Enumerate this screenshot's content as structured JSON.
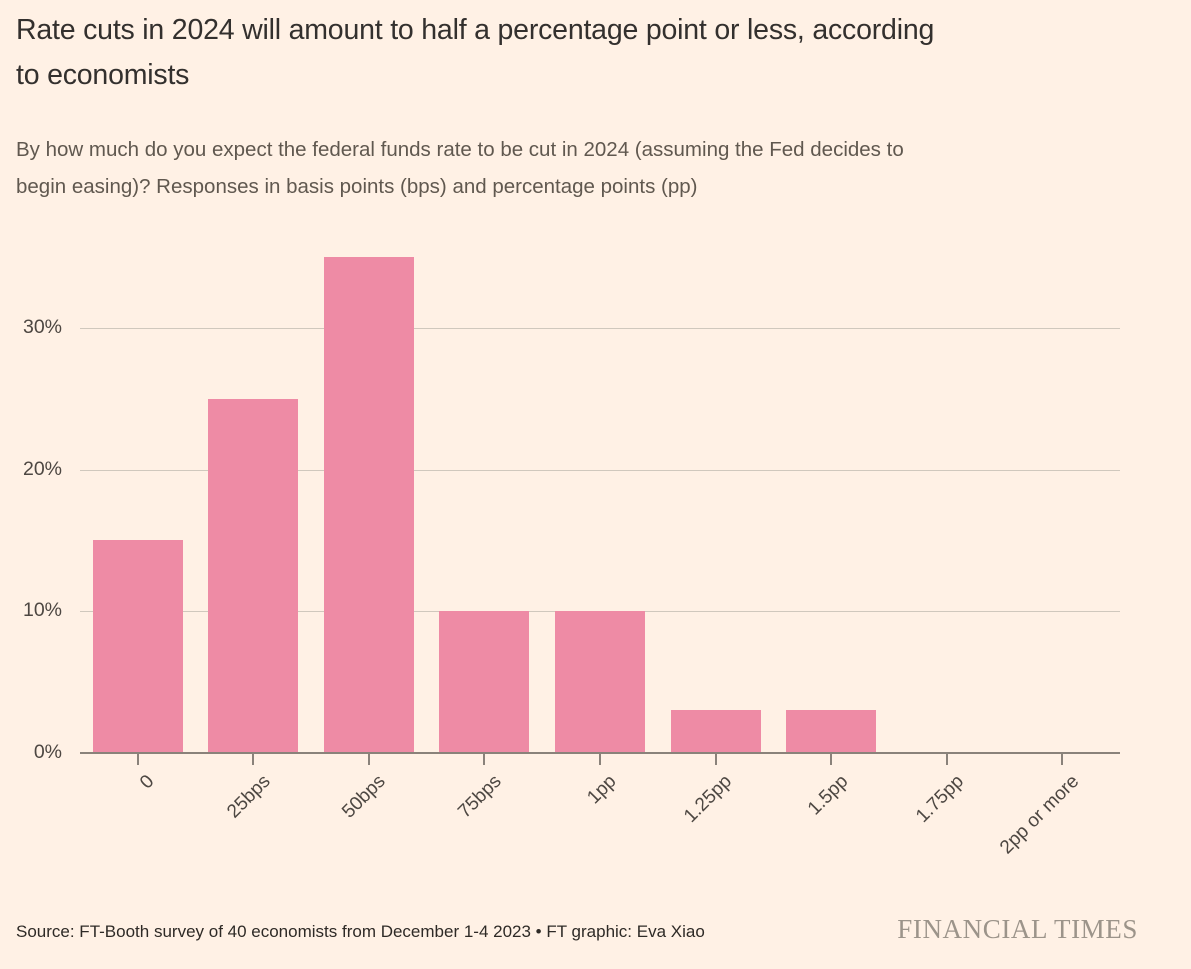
{
  "header": {
    "title": "Rate cuts in 2024 will amount to half a percentage point or less, according to economists",
    "title_lines": [
      "Rate cuts in 2024 will amount to half a percentage point or less, according",
      "to economists"
    ],
    "subtitle": "By how much do you expect the federal funds rate to be cut in 2024 (assuming the Fed decides to begin easing)? Responses in basis points (bps) and percentage points (pp)",
    "subtitle_lines": [
      "By how much do you expect the federal funds rate to be cut in 2024 (assuming the Fed decides to",
      "begin easing)? Responses in basis points (bps) and percentage points (pp)"
    ]
  },
  "chart_data": {
    "type": "bar",
    "title": "Rate cuts in 2024 will amount to half a percentage point or less, according to economists",
    "subtitle": "By how much do you expect the federal funds rate to be cut in 2024 (assuming the Fed decides to begin easing)? Responses in basis points (bps) and percentage points (pp)",
    "categories": [
      "0",
      "25bps",
      "50bps",
      "75bps",
      "1pp",
      "1.25pp",
      "1.5pp",
      "1.75pp",
      "2pp or more"
    ],
    "values": [
      15,
      25,
      35,
      10,
      10,
      3,
      3,
      0,
      0
    ],
    "unit": "%",
    "xlabel": "",
    "ylabel": "",
    "ylim": [
      0,
      36
    ],
    "yticks": [
      {
        "value": 0,
        "label": "0%"
      },
      {
        "value": 10,
        "label": "10%"
      },
      {
        "value": 20,
        "label": "20%"
      },
      {
        "value": 30,
        "label": "30%"
      }
    ],
    "grid": "horizontal",
    "legend": "none",
    "bar_color": "#EE8BA5"
  },
  "footer": {
    "source": "Source: FT-Booth survey of 40 economists from December 1-4 2023 • FT graphic: Eva Xiao",
    "brand": "FINANCIAL TIMES"
  },
  "colors": {
    "background": "#FFF1E5",
    "bar": "#EE8BA5",
    "gridline": "#D0C8BD",
    "axis": "#8A827A",
    "title_text": "#33302E",
    "subtitle_text": "#60584F",
    "brand_text": "#9C948A"
  }
}
